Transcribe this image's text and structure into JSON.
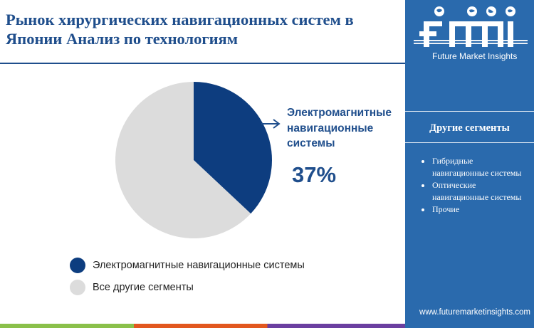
{
  "header": {
    "title_line1": "Рынок хирургических навигационных систем в",
    "title_line2": "Японии Анализ по технологиям"
  },
  "brand": {
    "logo_text": "fmi",
    "tagline": "Future Market Insights",
    "website": "www.futuremarketinsights.com"
  },
  "sidebar": {
    "heading": "Другие сегменты",
    "items": [
      {
        "line1": "Гибридные",
        "line2": "навигационные системы"
      },
      {
        "line1": "Оптические",
        "line2": "навигационные системы"
      },
      {
        "line1": "Прочие",
        "line2": ""
      }
    ]
  },
  "callout": {
    "label_line1": "Электромагнитные",
    "label_line2": "навигационные",
    "label_line3": "системы",
    "value": "37%"
  },
  "chart_data": {
    "type": "pie",
    "title": "Рынок хирургических навигационных систем в Японии Анализ по технологиям",
    "slices": [
      {
        "label": "Электромагнитные навигационные системы",
        "value": 37,
        "color": "#0d3d7f"
      },
      {
        "label": "Все другие сегменты",
        "value": 63,
        "color": "#dcdcdc"
      }
    ],
    "legend_position": "bottom-left"
  },
  "colors": {
    "accent": "#1f4e8c",
    "sidebar": "#2a6aad",
    "highlight_slice": "#0d3d7f",
    "other_slice": "#dcdcdc"
  }
}
